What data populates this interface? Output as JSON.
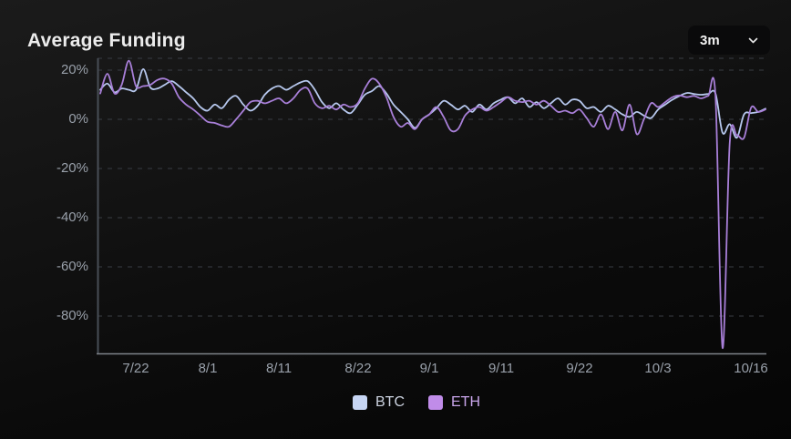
{
  "header": {
    "title": "Average Funding",
    "range_selector": {
      "value": "3m"
    }
  },
  "chart_data": {
    "type": "line",
    "title": "Average Funding",
    "unit": "%",
    "grid": "horizontal-dashed",
    "legend_position": "bottom-center",
    "colors": {
      "background_top": "#1b1b1b",
      "background_bottom": "#050505",
      "grid": "#393d44",
      "y_axis_line": "#484e56",
      "x_axis_line": "#7e838a",
      "tick_text": "#99a0aa"
    },
    "y_axis": {
      "range": [
        -95.2,
        24.8
      ],
      "ticks": [
        {
          "label": "20%",
          "value": 20
        },
        {
          "label": "0%",
          "value": 0
        },
        {
          "label": "-20%",
          "value": -20
        },
        {
          "label": "-40%",
          "value": -40
        },
        {
          "label": "-60%",
          "value": -60
        },
        {
          "label": "-80%",
          "value": -80
        }
      ]
    },
    "x_axis": {
      "ticks": [
        {
          "label": "7/22",
          "day_offset": 5
        },
        {
          "label": "8/1",
          "day_offset": 15
        },
        {
          "label": "8/11",
          "day_offset": 25
        },
        {
          "label": "8/22",
          "day_offset": 36
        },
        {
          "label": "9/1",
          "day_offset": 46
        },
        {
          "label": "9/11",
          "day_offset": 56
        },
        {
          "label": "9/22",
          "day_offset": 67
        },
        {
          "label": "10/3",
          "day_offset": 78
        },
        {
          "label": "10/16",
          "day_offset": 91
        }
      ]
    },
    "series": [
      {
        "name": "BTC",
        "color": "#b7c8ee",
        "swatch_color": "#c7d6f4",
        "label_color": "#ccd3e0",
        "values": [
          12,
          14.5,
          11,
          12.5,
          12,
          12,
          20.4,
          13,
          12.5,
          14,
          15.5,
          13.5,
          11,
          8.5,
          5,
          3.5,
          6,
          4.5,
          8,
          9.5,
          6,
          3.5,
          5.5,
          10,
          12.5,
          13.5,
          12,
          13.5,
          15,
          15.5,
          12,
          7,
          4.5,
          6.5,
          4,
          2.5,
          6,
          10,
          11.5,
          13.5,
          10.5,
          6,
          3,
          0,
          -3.5,
          0,
          2,
          4.5,
          7.5,
          6,
          4,
          5.5,
          3,
          6,
          4,
          6.5,
          8,
          9,
          6.5,
          8.5,
          5,
          7,
          4.5,
          6.5,
          8.5,
          6,
          8,
          7.5,
          4.5,
          5,
          3,
          5.5,
          4,
          2,
          1,
          3,
          1.5,
          0.5,
          4,
          6,
          8,
          9.5,
          10.7,
          10.3,
          10,
          10.3,
          10.5,
          -5.5,
          -2,
          -7.5,
          2,
          2.5,
          3,
          4.3
        ]
      },
      {
        "name": "ETH",
        "color": "#a87fd8",
        "swatch_color": "#c08ce9",
        "label_color": "#c8a5ea",
        "values": [
          10.5,
          18.5,
          10.5,
          14,
          23.8,
          13.5,
          13.5,
          14,
          16,
          16.5,
          14.5,
          9,
          6,
          4,
          1.5,
          -1,
          -1.5,
          -2.5,
          -3,
          0,
          3.5,
          7,
          7.5,
          6.5,
          7.5,
          8.5,
          6.5,
          8.5,
          12,
          12.5,
          6.5,
          4.5,
          5.5,
          4,
          6,
          5,
          6.5,
          12.5,
          16.5,
          14.5,
          9,
          1,
          -3,
          -1.5,
          -4,
          0,
          2,
          5,
          1,
          -4.5,
          -4,
          1.5,
          4,
          5,
          3.5,
          5,
          7,
          9,
          7.5,
          7,
          7.5,
          6,
          7.5,
          5.5,
          3,
          3.5,
          2.5,
          4,
          0.5,
          -3,
          2,
          -4,
          3,
          -4.5,
          6,
          -6,
          0,
          6.5,
          5,
          7,
          9,
          9.7,
          9,
          9.5,
          8.5,
          9.5,
          9.8,
          -93,
          -9.5,
          -6.5,
          -7.5,
          4.8,
          3,
          4
        ]
      }
    ]
  }
}
